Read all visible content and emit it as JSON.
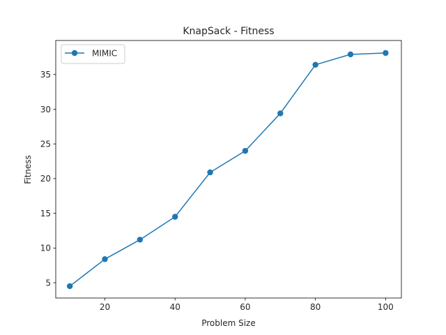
{
  "chart_data": {
    "type": "line",
    "title": "KnapSack - Fitness",
    "xlabel": "Problem Size",
    "ylabel": "Fitness",
    "xlim": [
      6,
      104.5
    ],
    "ylim": [
      2.8,
      39.9
    ],
    "xticks": [
      20,
      40,
      60,
      80,
      100
    ],
    "yticks": [
      5,
      10,
      15,
      20,
      25,
      30,
      35
    ],
    "grid": false,
    "legend": "top-left",
    "series": [
      {
        "name": "MIMIC",
        "color": "#1f77b4",
        "marker": "circle",
        "x": [
          10,
          20,
          30,
          40,
          50,
          60,
          70,
          80,
          90,
          100
        ],
        "y": [
          4.5,
          8.4,
          11.2,
          14.5,
          20.9,
          24.0,
          29.4,
          36.4,
          37.9,
          38.1
        ]
      }
    ]
  }
}
